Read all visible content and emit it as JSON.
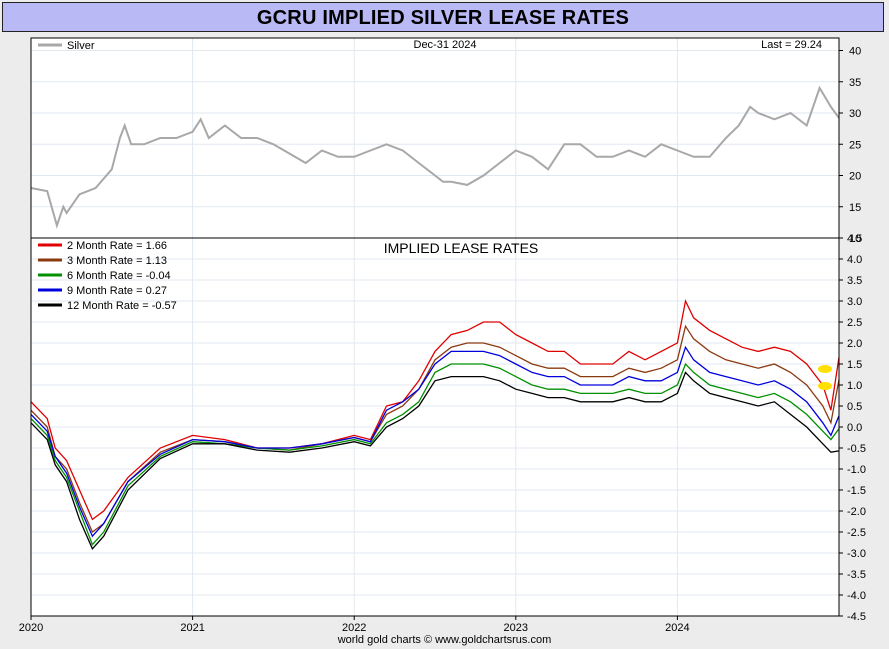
{
  "title": "GCRU IMPLIED SILVER LEASE RATES",
  "footer": "world gold charts © www.goldchartsrus.com",
  "colors": {
    "title_bg": "#b9b9f5",
    "silver": "#a8a8a8",
    "rate_2m": "#e00000",
    "rate_3m": "#8b3a10",
    "rate_6m": "#009000",
    "rate_9m": "#0000dd",
    "rate_12m": "#000000",
    "highlight": "#ffe000"
  },
  "chart_data": [
    {
      "type": "line",
      "legend": [
        "Silver"
      ],
      "date_label": "Dec-31  2024",
      "last_label": "Last = 29.24",
      "ylim": [
        10,
        42
      ],
      "yticks": [
        10,
        15,
        20,
        25,
        30,
        35,
        40
      ],
      "series": [
        {
          "name": "Silver",
          "color": "#a8a8a8",
          "x": [
            2020.0,
            2020.1,
            2020.16,
            2020.2,
            2020.22,
            2020.3,
            2020.4,
            2020.5,
            2020.55,
            2020.58,
            2020.62,
            2020.7,
            2020.8,
            2020.9,
            2021.0,
            2021.05,
            2021.1,
            2021.2,
            2021.3,
            2021.4,
            2021.5,
            2021.6,
            2021.7,
            2021.8,
            2021.9,
            2022.0,
            2022.1,
            2022.2,
            2022.3,
            2022.4,
            2022.5,
            2022.55,
            2022.6,
            2022.7,
            2022.8,
            2022.9,
            2023.0,
            2023.1,
            2023.2,
            2023.3,
            2023.4,
            2023.5,
            2023.6,
            2023.7,
            2023.8,
            2023.9,
            2024.0,
            2024.1,
            2024.2,
            2024.3,
            2024.38,
            2024.45,
            2024.5,
            2024.6,
            2024.7,
            2024.8,
            2024.88,
            2024.95,
            2025.0
          ],
          "y": [
            18,
            17.5,
            12,
            15,
            14,
            17,
            18,
            21,
            26,
            28,
            25,
            25,
            26,
            26,
            27,
            29,
            26,
            28,
            26,
            26,
            25,
            23.5,
            22,
            24,
            23,
            23,
            24,
            25,
            24,
            22,
            20,
            19,
            19,
            18.5,
            20,
            22,
            24,
            23,
            21,
            25,
            25,
            23,
            23,
            24,
            23,
            25,
            24,
            23,
            23,
            26,
            28,
            31,
            30,
            29,
            30,
            28,
            34,
            31,
            29.2
          ]
        }
      ]
    },
    {
      "type": "line",
      "title": "IMPLIED LEASE RATES",
      "ylim": [
        -4.5,
        4.5
      ],
      "yticks": [
        -4.5,
        -4.0,
        -3.5,
        -3.0,
        -2.5,
        -2.0,
        -1.5,
        -1.0,
        -0.5,
        0.0,
        0.5,
        1.0,
        1.5,
        2.0,
        2.5,
        3.0,
        3.5,
        4.0,
        4.5
      ],
      "xlim": [
        2020,
        2025
      ],
      "xticks": [
        2020,
        2021,
        2022,
        2023,
        2024
      ],
      "x": [
        2020.0,
        2020.1,
        2020.15,
        2020.22,
        2020.3,
        2020.38,
        2020.45,
        2020.6,
        2020.8,
        2021.0,
        2021.2,
        2021.4,
        2021.6,
        2021.8,
        2022.0,
        2022.1,
        2022.2,
        2022.3,
        2022.4,
        2022.5,
        2022.6,
        2022.7,
        2022.8,
        2022.9,
        2023.0,
        2023.1,
        2023.2,
        2023.3,
        2023.4,
        2023.5,
        2023.6,
        2023.7,
        2023.8,
        2023.9,
        2024.0,
        2024.05,
        2024.1,
        2024.2,
        2024.3,
        2024.4,
        2024.5,
        2024.6,
        2024.7,
        2024.8,
        2024.9,
        2024.95,
        2025.0
      ],
      "series": [
        {
          "name": "2 Month Rate  = 1.66",
          "color": "#e00000",
          "values": [
            0.6,
            0.2,
            -0.5,
            -0.8,
            -1.5,
            -2.2,
            -2.0,
            -1.2,
            -0.5,
            -0.2,
            -0.3,
            -0.5,
            -0.5,
            -0.4,
            -0.2,
            -0.3,
            0.5,
            0.6,
            1.1,
            1.8,
            2.2,
            2.3,
            2.5,
            2.5,
            2.2,
            2.0,
            1.8,
            1.8,
            1.5,
            1.5,
            1.5,
            1.8,
            1.6,
            1.8,
            2.0,
            3.0,
            2.6,
            2.3,
            2.1,
            1.9,
            1.8,
            1.9,
            1.8,
            1.5,
            1.0,
            0.4,
            1.66
          ]
        },
        {
          "name": "3 Month Rate  = 1.13",
          "color": "#8b3a10",
          "values": [
            0.4,
            0.0,
            -0.7,
            -1.0,
            -1.8,
            -2.5,
            -2.3,
            -1.3,
            -0.6,
            -0.3,
            -0.35,
            -0.5,
            -0.55,
            -0.4,
            -0.25,
            -0.35,
            0.3,
            0.5,
            0.9,
            1.6,
            1.9,
            2.0,
            2.0,
            1.9,
            1.7,
            1.5,
            1.4,
            1.4,
            1.2,
            1.2,
            1.2,
            1.4,
            1.3,
            1.4,
            1.6,
            2.4,
            2.1,
            1.8,
            1.6,
            1.5,
            1.4,
            1.5,
            1.3,
            1.0,
            0.5,
            0.1,
            1.13
          ]
        },
        {
          "name": "6 Month Rate  = -0.04",
          "color": "#009000",
          "values": [
            0.2,
            -0.2,
            -0.8,
            -1.2,
            -2.0,
            -2.8,
            -2.5,
            -1.4,
            -0.7,
            -0.35,
            -0.4,
            -0.5,
            -0.55,
            -0.45,
            -0.3,
            -0.4,
            0.1,
            0.3,
            0.6,
            1.3,
            1.5,
            1.5,
            1.5,
            1.4,
            1.2,
            1.0,
            0.9,
            0.9,
            0.8,
            0.8,
            0.8,
            0.9,
            0.8,
            0.8,
            1.0,
            1.5,
            1.3,
            1.0,
            0.9,
            0.8,
            0.7,
            0.8,
            0.6,
            0.3,
            -0.1,
            -0.3,
            -0.04
          ]
        },
        {
          "name": "9 Month Rate  = 0.27",
          "color": "#0000dd",
          "values": [
            0.3,
            -0.1,
            -0.7,
            -1.1,
            -1.9,
            -2.6,
            -2.3,
            -1.3,
            -0.65,
            -0.3,
            -0.35,
            -0.5,
            -0.5,
            -0.4,
            -0.25,
            -0.35,
            0.4,
            0.6,
            0.9,
            1.5,
            1.8,
            1.8,
            1.8,
            1.7,
            1.5,
            1.3,
            1.2,
            1.2,
            1.0,
            1.0,
            1.0,
            1.2,
            1.1,
            1.1,
            1.3,
            1.9,
            1.6,
            1.3,
            1.2,
            1.1,
            1.0,
            1.1,
            0.9,
            0.6,
            0.1,
            -0.2,
            0.27
          ]
        },
        {
          "name": "12 Month Rate  = -0.57",
          "color": "#000000",
          "values": [
            0.1,
            -0.3,
            -0.9,
            -1.3,
            -2.2,
            -2.9,
            -2.6,
            -1.5,
            -0.75,
            -0.4,
            -0.4,
            -0.55,
            -0.6,
            -0.5,
            -0.35,
            -0.45,
            0.0,
            0.2,
            0.5,
            1.1,
            1.2,
            1.2,
            1.2,
            1.1,
            0.9,
            0.8,
            0.7,
            0.7,
            0.6,
            0.6,
            0.6,
            0.7,
            0.6,
            0.6,
            0.8,
            1.3,
            1.1,
            0.8,
            0.7,
            0.6,
            0.5,
            0.6,
            0.3,
            0.0,
            -0.4,
            -0.6,
            -0.57
          ]
        }
      ]
    }
  ]
}
